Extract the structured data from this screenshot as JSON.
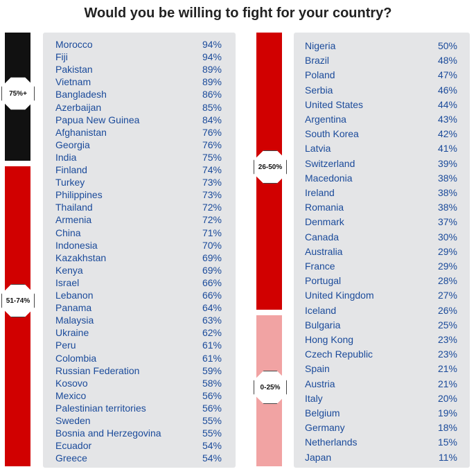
{
  "title": "Would you be willing to fight for your country?",
  "colors": {
    "high": "#111111",
    "mid": "#d10000",
    "low_mid": "#d10000",
    "low": "#f1a3a3",
    "text": "#1a4a9a",
    "panel": "#e4e5e7"
  },
  "chart_data": {
    "type": "table",
    "title": "Would you be willing to fight for your country?",
    "bands": [
      {
        "label": "75%+",
        "min": 75,
        "max": 100
      },
      {
        "label": "51-74%",
        "min": 51,
        "max": 74
      },
      {
        "label": "26-50%",
        "min": 26,
        "max": 50
      },
      {
        "label": "0-25%",
        "min": 0,
        "max": 25
      }
    ],
    "columns": [
      {
        "rows": [
          {
            "country": "Morocco",
            "value": "94%"
          },
          {
            "country": "Fiji",
            "value": "94%"
          },
          {
            "country": "Pakistan",
            "value": "89%"
          },
          {
            "country": "Vietnam",
            "value": "89%"
          },
          {
            "country": "Bangladesh",
            "value": "86%"
          },
          {
            "country": "Azerbaijan",
            "value": "85%"
          },
          {
            "country": "Papua New Guinea",
            "value": "84%"
          },
          {
            "country": "Afghanistan",
            "value": "76%"
          },
          {
            "country": "Georgia",
            "value": "76%"
          },
          {
            "country": "India",
            "value": "75%"
          },
          {
            "country": "Finland",
            "value": "74%"
          },
          {
            "country": "Turkey",
            "value": "73%"
          },
          {
            "country": "Philippines",
            "value": "73%"
          },
          {
            "country": "Thailand",
            "value": "72%"
          },
          {
            "country": "Armenia",
            "value": "72%"
          },
          {
            "country": "China",
            "value": "71%"
          },
          {
            "country": "Indonesia",
            "value": "70%"
          },
          {
            "country": "Kazakhstan",
            "value": "69%"
          },
          {
            "country": "Kenya",
            "value": "69%"
          },
          {
            "country": "Israel",
            "value": "66%"
          },
          {
            "country": "Lebanon",
            "value": "66%"
          },
          {
            "country": "Panama",
            "value": "64%"
          },
          {
            "country": "Malaysia",
            "value": "63%"
          },
          {
            "country": "Ukraine",
            "value": "62%"
          },
          {
            "country": "Peru",
            "value": "61%"
          },
          {
            "country": "Colombia",
            "value": "61%"
          },
          {
            "country": "Russian Federation",
            "value": "59%"
          },
          {
            "country": "Kosovo",
            "value": "58%"
          },
          {
            "country": "Mexico",
            "value": "56%"
          },
          {
            "country": "Palestinian territories",
            "value": "56%"
          },
          {
            "country": "Sweden",
            "value": "55%"
          },
          {
            "country": "Bosnia and Herzegovina",
            "value": "55%"
          },
          {
            "country": "Ecuador",
            "value": "54%"
          },
          {
            "country": "Greece",
            "value": "54%"
          }
        ]
      },
      {
        "rows": [
          {
            "country": "Nigeria",
            "value": "50%"
          },
          {
            "country": "Brazil",
            "value": "48%"
          },
          {
            "country": "Poland",
            "value": "47%"
          },
          {
            "country": "Serbia",
            "value": "46%"
          },
          {
            "country": "United States",
            "value": "44%"
          },
          {
            "country": "Argentina",
            "value": "43%"
          },
          {
            "country": "South Korea",
            "value": "42%"
          },
          {
            "country": "Latvia",
            "value": "41%"
          },
          {
            "country": "Switzerland",
            "value": "39%"
          },
          {
            "country": "Macedonia",
            "value": "38%"
          },
          {
            "country": "Ireland",
            "value": "38%"
          },
          {
            "country": "Romania",
            "value": "38%"
          },
          {
            "country": "Denmark",
            "value": "37%"
          },
          {
            "country": "Canada",
            "value": "30%"
          },
          {
            "country": "Australia",
            "value": "29%"
          },
          {
            "country": "France",
            "value": "29%"
          },
          {
            "country": "Portugal",
            "value": "28%"
          },
          {
            "country": "United Kingdom",
            "value": "27%"
          },
          {
            "country": "Iceland",
            "value": "26%"
          },
          {
            "country": "Bulgaria",
            "value": "25%"
          },
          {
            "country": "Hong Kong",
            "value": "23%"
          },
          {
            "country": "Czech Republic",
            "value": "23%"
          },
          {
            "country": "Spain",
            "value": "21%"
          },
          {
            "country": "Austria",
            "value": "21%"
          },
          {
            "country": "Italy",
            "value": "20%"
          },
          {
            "country": "Belgium",
            "value": "19%"
          },
          {
            "country": "Germany",
            "value": "18%"
          },
          {
            "country": "Netherlands",
            "value": "15%"
          },
          {
            "country": "Japan",
            "value": "11%"
          }
        ]
      }
    ]
  }
}
